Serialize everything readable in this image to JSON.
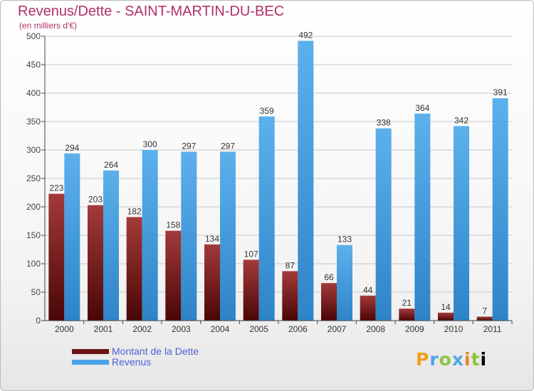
{
  "chart_data": {
    "type": "bar",
    "title": "Revenus/Dette - SAINT-MARTIN-DU-BEC",
    "subtitle": "(en milliers d'€)",
    "categories": [
      "2000",
      "2001",
      "2002",
      "2003",
      "2004",
      "2005",
      "2006",
      "2007",
      "2008",
      "2009",
      "2010",
      "2011"
    ],
    "series": [
      {
        "name": "Montant de la Dette",
        "color": "#7a1a1a",
        "values": [
          223,
          203,
          182,
          158,
          134,
          107,
          87,
          66,
          44,
          21,
          14,
          7
        ]
      },
      {
        "name": "Revenus",
        "color": "#4aa3e6",
        "values": [
          294,
          264,
          300,
          297,
          297,
          359,
          492,
          133,
          338,
          364,
          342,
          391
        ]
      }
    ],
    "yticks": [
      0,
      50,
      100,
      150,
      200,
      250,
      300,
      350,
      400,
      450,
      500
    ],
    "ylim": [
      0,
      500
    ],
    "grid": true,
    "legend_position": "bottom-left"
  },
  "logo": {
    "letters": [
      "P",
      "r",
      "o",
      "x",
      "i",
      "t",
      "i"
    ]
  }
}
